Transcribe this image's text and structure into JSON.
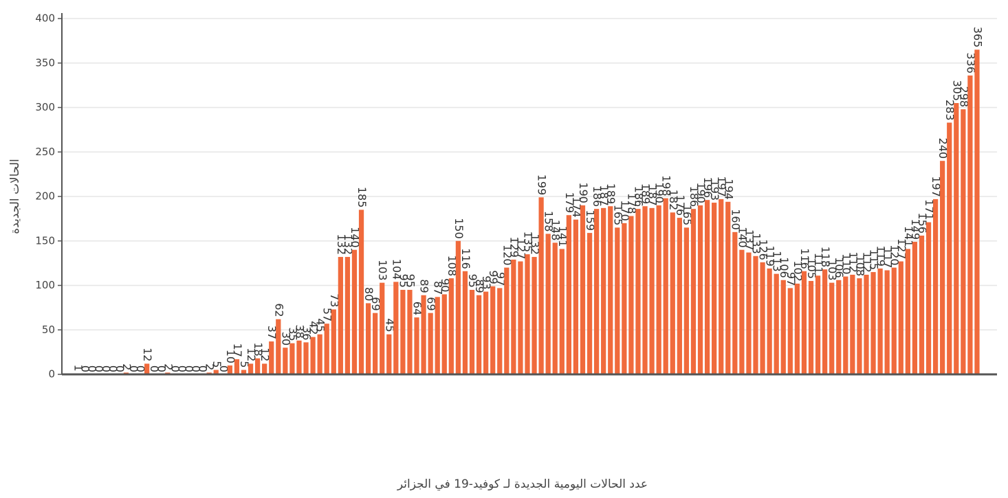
{
  "chart_data": {
    "type": "bar",
    "title": "عدد الحالات اليومية الجديدة لـ كوفيد-19 في الجزائر",
    "y_label": "الحالات الجديدة",
    "categories": [
      null,
      null,
      null,
      null,
      null,
      null,
      null,
      null,
      null,
      null,
      null,
      null,
      null,
      null,
      null,
      null,
      null,
      null,
      null,
      null,
      null,
      null,
      null,
      null,
      null,
      null,
      null,
      null,
      null,
      null,
      null,
      null,
      null,
      null,
      null,
      null,
      null,
      null,
      null,
      null,
      null,
      null,
      null,
      null,
      null,
      null,
      null,
      null,
      null,
      null,
      null,
      null,
      null,
      null,
      null,
      null,
      null,
      null,
      null,
      null,
      null,
      null,
      null,
      null,
      null,
      null,
      null,
      null,
      null,
      null,
      null,
      null,
      null,
      null,
      null,
      null,
      null,
      null,
      null,
      null,
      null,
      null,
      null,
      null,
      null,
      null,
      null,
      null,
      null,
      null,
      null,
      null,
      null,
      null,
      null,
      null,
      null,
      null,
      null,
      null,
      null,
      null,
      null,
      null,
      null,
      null,
      null,
      null,
      null,
      null,
      null,
      null,
      null,
      null,
      null,
      null,
      null,
      null,
      null,
      null,
      null,
      null,
      null,
      null,
      null,
      null,
      null,
      null,
      null,
      null,
      null
    ],
    "values": [
      1,
      0,
      0,
      0,
      0,
      0,
      0,
      2,
      0,
      0,
      12,
      0,
      0,
      2,
      0,
      0,
      0,
      0,
      0,
      2,
      5,
      0,
      10,
      17,
      5,
      12,
      18,
      12,
      37,
      62,
      30,
      35,
      38,
      36,
      42,
      45,
      57,
      73,
      132,
      132,
      140,
      185,
      80,
      69,
      103,
      45,
      104,
      95,
      95,
      64,
      89,
      69,
      87,
      90,
      108,
      150,
      116,
      95,
      89,
      93,
      99,
      97,
      120,
      129,
      127,
      135,
      132,
      199,
      158,
      148,
      141,
      179,
      174,
      190,
      159,
      186,
      187,
      189,
      165,
      170,
      178,
      186,
      189,
      187,
      190,
      198,
      182,
      176,
      165,
      186,
      190,
      196,
      193,
      197,
      194,
      160,
      140,
      137,
      133,
      126,
      119,
      113,
      106,
      97,
      102,
      116,
      105,
      111,
      118,
      103,
      106,
      110,
      112,
      108,
      112,
      115,
      119,
      117,
      120,
      127,
      141,
      149,
      156,
      171,
      197,
      240,
      283,
      305,
      298,
      336,
      365
    ],
    "color": "#f06a3c",
    "ylim": [
      0,
      400
    ],
    "yticks": [
      0,
      50,
      100,
      150,
      200,
      250,
      300,
      350,
      400
    ],
    "grid": true
  }
}
